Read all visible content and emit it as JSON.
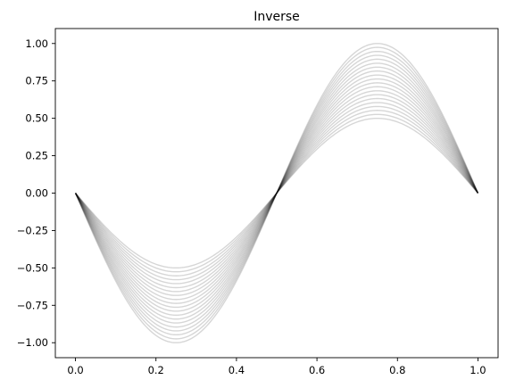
{
  "chart_data": {
    "type": "line",
    "title": "Inverse",
    "xlabel": "",
    "ylabel": "",
    "xlim": [
      -0.05,
      1.05
    ],
    "ylim": [
      -1.1,
      1.1
    ],
    "grid": false,
    "x_ticks": [
      0.0,
      0.2,
      0.4,
      0.6,
      0.8,
      1.0
    ],
    "x_tick_labels": [
      "0.0",
      "0.2",
      "0.4",
      "0.6",
      "0.8",
      "1.0"
    ],
    "y_ticks": [
      -1.0,
      -0.75,
      -0.5,
      -0.25,
      0.0,
      0.25,
      0.5,
      0.75,
      1.0
    ],
    "y_tick_labels": [
      "−1.00",
      "−0.75",
      "−0.50",
      "−0.25",
      "0.00",
      "0.25",
      "0.50",
      "0.75",
      "1.00"
    ],
    "line_color": "#000000",
    "function": "-A * sin(2*pi*x)",
    "amplitudes": [
      0.5,
      0.526,
      0.553,
      0.579,
      0.605,
      0.632,
      0.658,
      0.684,
      0.711,
      0.737,
      0.763,
      0.789,
      0.816,
      0.842,
      0.868,
      0.895,
      0.921,
      0.947,
      0.974,
      1.0
    ],
    "x": [
      0.0,
      0.05,
      0.1,
      0.15,
      0.2,
      0.25,
      0.3,
      0.35,
      0.4,
      0.45,
      0.5,
      0.55,
      0.6,
      0.65,
      0.7,
      0.75,
      0.8,
      0.85,
      0.9,
      0.95,
      1.0
    ]
  }
}
